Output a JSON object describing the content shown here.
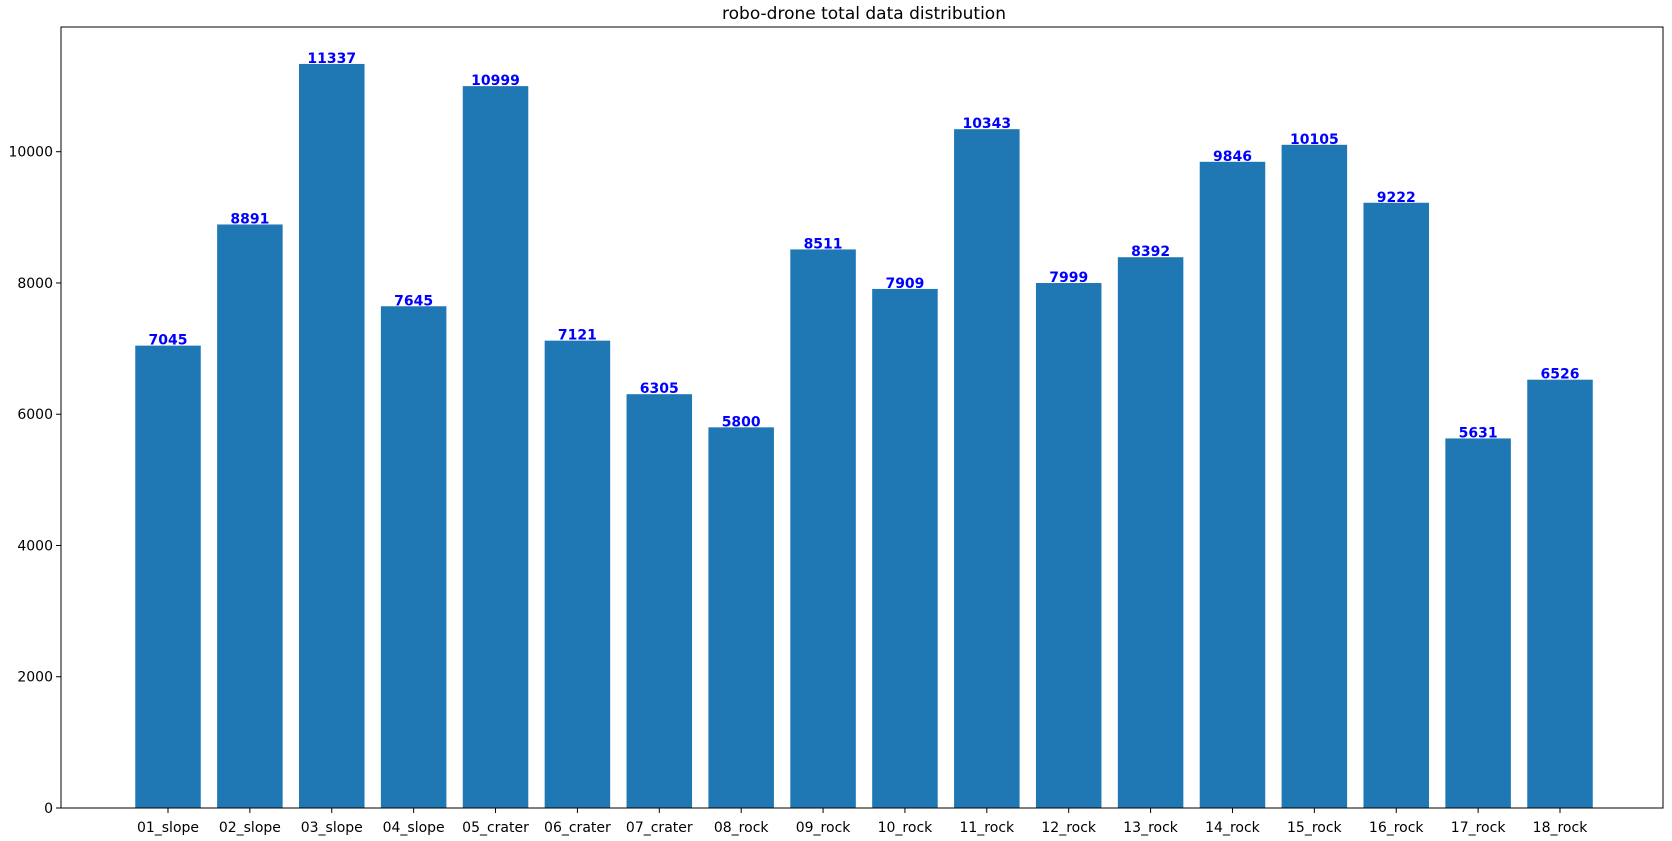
{
  "colors": {
    "bar": "#1f77b4",
    "data_label": "#0000ff",
    "axis": "#000000",
    "background": "#ffffff"
  },
  "chart_data": {
    "type": "bar",
    "title": "robo-drone total data distribution",
    "xlabel": "",
    "ylabel": "",
    "categories": [
      "01_slope",
      "02_slope",
      "03_slope",
      "04_slope",
      "05_crater",
      "06_crater",
      "07_crater",
      "08_rock",
      "09_rock",
      "10_rock",
      "11_rock",
      "12_rock",
      "13_rock",
      "14_rock",
      "15_rock",
      "16_rock",
      "17_rock",
      "18_rock"
    ],
    "values": [
      7045,
      8891,
      11337,
      7645,
      10999,
      7121,
      6305,
      5800,
      8511,
      7909,
      10343,
      7999,
      8392,
      9846,
      10105,
      9222,
      5631,
      6526
    ],
    "ylim": [
      0,
      11900
    ],
    "yticks": [
      0,
      2000,
      4000,
      6000,
      8000,
      10000
    ],
    "grid": false,
    "data_labels": true
  }
}
